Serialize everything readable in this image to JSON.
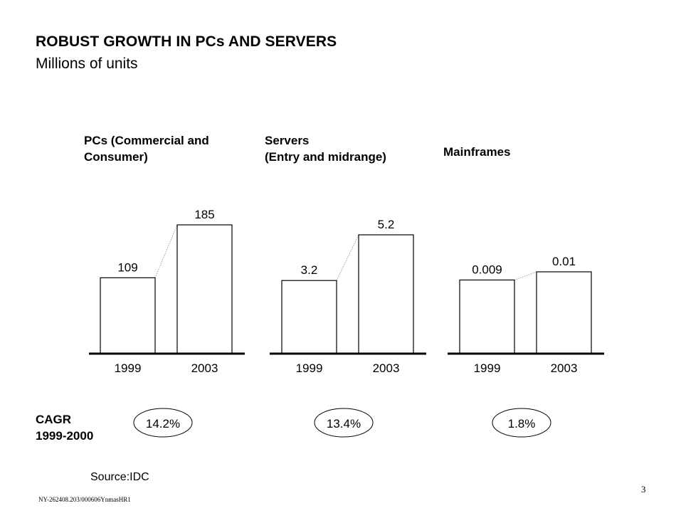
{
  "header": {
    "title": "ROBUST GROWTH IN PCs AND SERVERS",
    "subtitle": "Millions of units"
  },
  "chart_data": [
    {
      "type": "bar",
      "title_line1": "PCs (Commercial and",
      "title_line2": "Consumer)",
      "categories": [
        "1999",
        "2003"
      ],
      "values": [
        109,
        185
      ],
      "value_labels": [
        "109",
        "185"
      ],
      "cagr": "14.2%"
    },
    {
      "type": "bar",
      "title_line1": "Servers",
      "title_line2": "(Entry and midrange)",
      "categories": [
        "1999",
        "2003"
      ],
      "values": [
        3.2,
        5.2
      ],
      "value_labels": [
        "3.2",
        "5.2"
      ],
      "cagr": "13.4%"
    },
    {
      "type": "bar",
      "title_line1": "Mainframes",
      "title_line2": "",
      "categories": [
        "1999",
        "2003"
      ],
      "values": [
        0.009,
        0.01
      ],
      "value_labels": [
        "0.009",
        "0.01"
      ],
      "cagr": "1.8%"
    }
  ],
  "cagr": {
    "label_line1": "CAGR",
    "label_line2": "1999-2000"
  },
  "footer": {
    "source": "Source:IDC",
    "doc_id": "NY-262408.203/000606YnmasHR1",
    "page_number": "3"
  }
}
